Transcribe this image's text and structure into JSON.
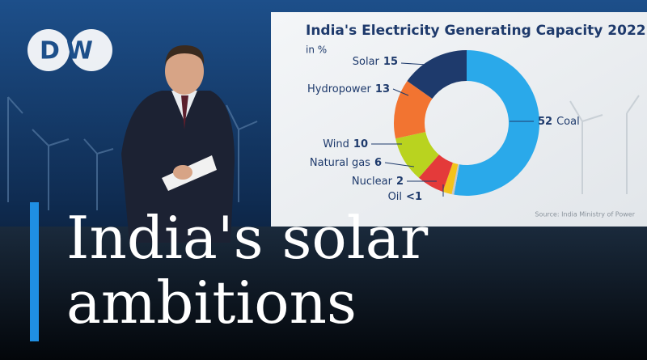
{
  "logo": "DW",
  "headline": [
    "India's solar",
    "ambitions"
  ],
  "chart_data": {
    "type": "donut",
    "title": "India's Electricity Generating Capacity 2022",
    "subtitle": "in %",
    "categories": [
      "Coal",
      "Oil",
      "Nuclear",
      "Natural gas",
      "Wind",
      "Hydropower",
      "Solar"
    ],
    "values": [
      52,
      0.5,
      2,
      6,
      10,
      13,
      15
    ],
    "value_labels": [
      "52",
      "<1",
      "2",
      "6",
      "10",
      "13",
      "15"
    ],
    "colors": [
      "#2aa9ea",
      "#c8c8c8",
      "#f3c31b",
      "#e43a3a",
      "#b9d31f",
      "#f27431",
      "#1e3a6c"
    ],
    "source": "Source: India Ministry of Power"
  }
}
